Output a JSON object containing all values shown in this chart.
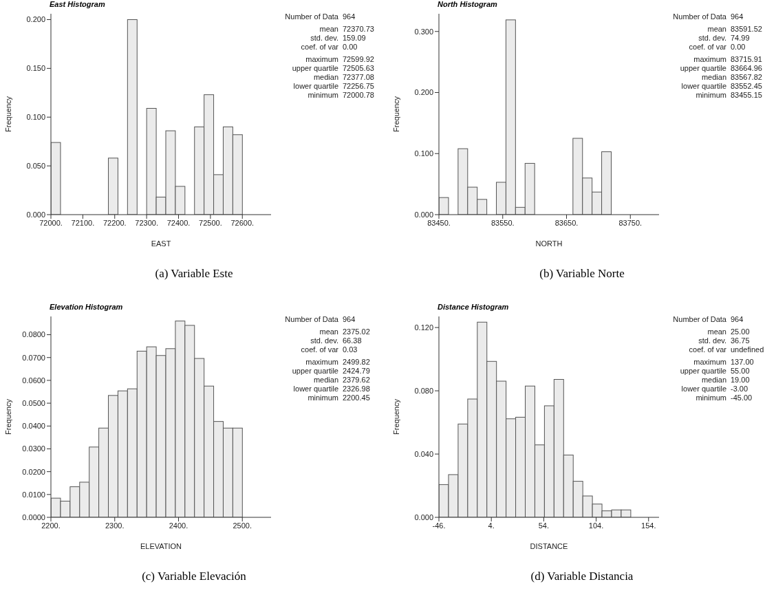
{
  "chart_data": [
    {
      "type": "histogram",
      "title": "East Histogram",
      "subtitle": "(a) Variable Este",
      "xlabel": "EAST",
      "ylabel": "Frequency",
      "color": "#ebebeb",
      "bins": [
        72000,
        72030,
        72060,
        72090,
        72120,
        72150,
        72180,
        72210,
        72240,
        72270,
        72300,
        72330,
        72360,
        72390,
        72420,
        72450,
        72480,
        72510,
        72540,
        72570,
        72600
      ],
      "values": [
        0.074,
        0,
        0,
        0,
        0,
        0,
        0.058,
        0,
        0.2,
        0,
        0.109,
        0.018,
        0.086,
        0.029,
        0,
        0.09,
        0.123,
        0.041,
        0.09,
        0.082
      ],
      "xlim": [
        72000,
        72690
      ],
      "xticks": [
        {
          "value": 72000,
          "label": "72000."
        },
        {
          "value": 72100,
          "label": "72100."
        },
        {
          "value": 72200,
          "label": "72200."
        },
        {
          "value": 72300,
          "label": "72300."
        },
        {
          "value": 72400,
          "label": "72400."
        },
        {
          "value": 72500,
          "label": "72500."
        },
        {
          "value": 72600,
          "label": "72600."
        }
      ],
      "ylim": [
        0,
        0.206
      ],
      "yticks": [
        {
          "value": 0,
          "label": "0.000"
        },
        {
          "value": 0.05,
          "label": "0.050"
        },
        {
          "value": 0.1,
          "label": "0.100"
        },
        {
          "value": 0.15,
          "label": "0.150"
        },
        {
          "value": 0.2,
          "label": "0.200"
        }
      ],
      "annotations": [
        "Number of Data 964",
        "mean 72370.73",
        "std. dev. 159.09",
        "coef. of var 0.00",
        "maximum 72599.92",
        "upper quartile 72505.63",
        "median 72377.08",
        "lower quartile 72256.75",
        "minimum 72000.78"
      ]
    },
    {
      "type": "histogram",
      "title": "North Histogram",
      "subtitle": "(b) Variable Norte",
      "xlabel": "NORTH",
      "ylabel": "Frequency",
      "color": "#ebebeb",
      "bins": [
        83450,
        83465,
        83480,
        83495,
        83510,
        83525,
        83540,
        83555,
        83570,
        83585,
        83600,
        83615,
        83630,
        83645,
        83660,
        83675,
        83690,
        83705,
        83720
      ],
      "values": [
        0.028,
        0,
        0.108,
        0.045,
        0.025,
        0,
        0.053,
        0.319,
        0.012,
        0.084,
        0,
        0,
        0,
        0,
        0.125,
        0.06,
        0.037,
        0.103
      ],
      "xlim": [
        83450,
        83795
      ],
      "xticks": [
        {
          "value": 83450,
          "label": "83450."
        },
        {
          "value": 83550,
          "label": "83550."
        },
        {
          "value": 83650,
          "label": "83650."
        },
        {
          "value": 83750,
          "label": "83750."
        }
      ],
      "ylim": [
        0,
        0.329
      ],
      "yticks": [
        {
          "value": 0,
          "label": "0.000"
        },
        {
          "value": 0.1,
          "label": "0.100"
        },
        {
          "value": 0.2,
          "label": "0.200"
        },
        {
          "value": 0.3,
          "label": "0.300"
        }
      ],
      "annotations": [
        "Number of Data 964",
        "mean 83591.52",
        "std. dev. 74.99",
        "coef. of var 0.00",
        "maximum 83715.91",
        "upper quartile 83664.96",
        "median 83567.82",
        "lower quartile 83552.45",
        "minimum 83455.15"
      ]
    },
    {
      "type": "histogram",
      "title": "Elevation Histogram",
      "subtitle": "(c) Variable Elevación",
      "xlabel": "ELEVATION",
      "ylabel": "Frequency",
      "color": "#ebebeb",
      "bins": [
        2200,
        2215,
        2230,
        2245,
        2260,
        2275,
        2290,
        2305,
        2320,
        2335,
        2350,
        2365,
        2380,
        2395,
        2410,
        2425,
        2440,
        2455,
        2470,
        2485,
        2500
      ],
      "values": [
        0.0084,
        0.0071,
        0.0134,
        0.0154,
        0.0308,
        0.0391,
        0.0534,
        0.0554,
        0.0563,
        0.0728,
        0.0747,
        0.0709,
        0.0739,
        0.086,
        0.0841,
        0.0696,
        0.0575,
        0.042,
        0.0391,
        0.0391
      ],
      "xlim": [
        2200,
        2545
      ],
      "xticks": [
        {
          "value": 2200,
          "label": "2200."
        },
        {
          "value": 2300,
          "label": "2300."
        },
        {
          "value": 2400,
          "label": "2400."
        },
        {
          "value": 2500,
          "label": "2500."
        }
      ],
      "ylim": [
        0,
        0.088
      ],
      "yticks": [
        {
          "value": 0,
          "label": "0.0000"
        },
        {
          "value": 0.01,
          "label": "0.0100"
        },
        {
          "value": 0.02,
          "label": "0.0200"
        },
        {
          "value": 0.03,
          "label": "0.0300"
        },
        {
          "value": 0.04,
          "label": "0.0400"
        },
        {
          "value": 0.05,
          "label": "0.0500"
        },
        {
          "value": 0.06,
          "label": "0.0600"
        },
        {
          "value": 0.07,
          "label": "0.0700"
        },
        {
          "value": 0.08,
          "label": "0.0800"
        }
      ],
      "annotations": [
        "Number of Data 964",
        "mean 2375.02",
        "std. dev. 66.38",
        "coef. of var 0.03",
        "maximum 2499.82",
        "upper quartile 2424.79",
        "median 2379.62",
        "lower quartile 2326.98",
        "minimum 2200.45"
      ]
    },
    {
      "type": "histogram",
      "title": "Distance Histogram",
      "subtitle": "(d) Variable Distancia",
      "xlabel": "DISTANCE",
      "ylabel": "Frequency",
      "color": "#ebebeb",
      "bins": [
        -46,
        -36.85,
        -27.7,
        -18.55,
        -9.4,
        -0.25,
        8.9,
        18.05,
        27.2,
        36.35,
        45.5,
        54.65,
        63.8,
        72.95,
        82.1,
        91.25,
        100.4,
        109.55,
        118.7,
        127.85,
        137
      ],
      "values": [
        0.0207,
        0.027,
        0.059,
        0.0748,
        0.1234,
        0.0986,
        0.0861,
        0.0623,
        0.0633,
        0.083,
        0.0458,
        0.0705,
        0.0872,
        0.0394,
        0.0228,
        0.0135,
        0.0084,
        0.0041,
        0.0047,
        0.0047
      ],
      "xlim": [
        -46,
        164
      ],
      "xticks": [
        {
          "value": -46,
          "label": "-46."
        },
        {
          "value": 4,
          "label": "4."
        },
        {
          "value": 54,
          "label": "54."
        },
        {
          "value": 104,
          "label": "104."
        },
        {
          "value": 154,
          "label": "154."
        }
      ],
      "ylim": [
        0,
        0.127
      ],
      "yticks": [
        {
          "value": 0,
          "label": "0.000"
        },
        {
          "value": 0.04,
          "label": "0.040"
        },
        {
          "value": 0.08,
          "label": "0.080"
        },
        {
          "value": 0.12,
          "label": "0.120"
        }
      ],
      "annotations": [
        "Number of Data 964",
        "mean 25.00",
        "std. dev. 36.75",
        "coef. of var undefined",
        "maximum 137.00",
        "upper quartile 55.00",
        "median 19.00",
        "lower quartile -3.00",
        "minimum -45.00"
      ]
    }
  ]
}
